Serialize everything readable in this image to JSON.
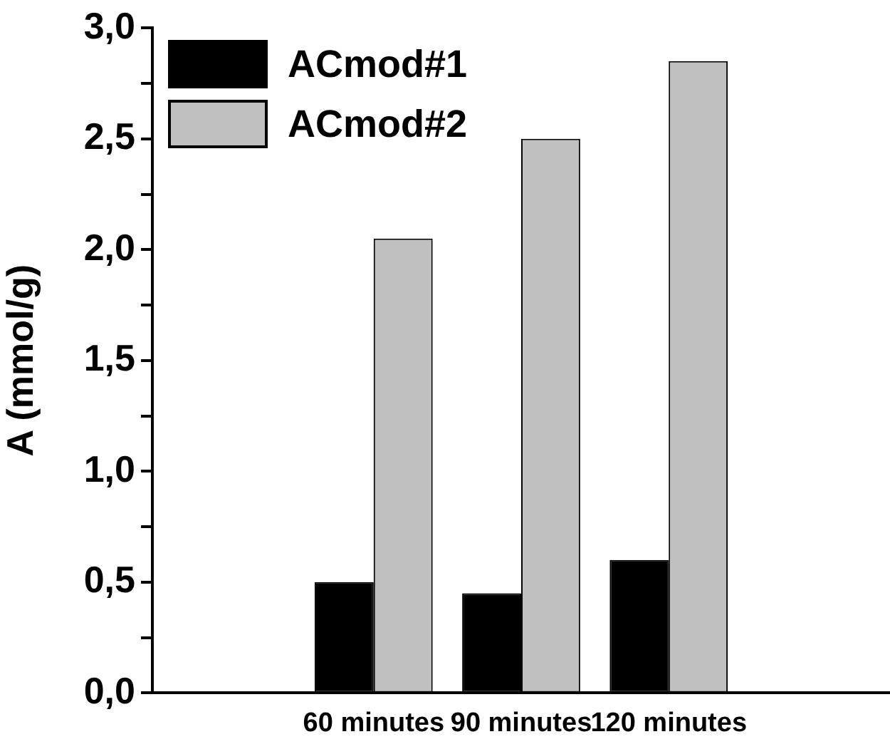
{
  "chart_data": {
    "type": "bar",
    "ylabel": "A (mmol/g)",
    "categories": [
      null,
      "60 minutes",
      "90 minutes",
      "120 minutes",
      null
    ],
    "series": [
      {
        "name": "ACmod#1",
        "color": "#000000",
        "values": [
          null,
          0.5,
          0.45,
          0.6,
          null
        ]
      },
      {
        "name": "ACmod#2",
        "color": "#c0c0c0",
        "values": [
          null,
          2.05,
          2.5,
          2.85,
          null
        ]
      }
    ],
    "ylim": [
      0,
      3
    ],
    "yticks": [
      {
        "value": 0,
        "label": "0,0"
      },
      {
        "value": 0.25,
        "label": null
      },
      {
        "value": 0.5,
        "label": "0,5"
      },
      {
        "value": 0.75,
        "label": null
      },
      {
        "value": 1,
        "label": "1,0"
      },
      {
        "value": 1.25,
        "label": null
      },
      {
        "value": 1.5,
        "label": "1,5"
      },
      {
        "value": 1.75,
        "label": null
      },
      {
        "value": 2,
        "label": "2,0"
      },
      {
        "value": 2.25,
        "label": null
      },
      {
        "value": 2.5,
        "label": "2,5"
      },
      {
        "value": 2.75,
        "label": null
      },
      {
        "value": 3,
        "label": "3,0"
      }
    ],
    "grid": false,
    "legend": "top left"
  }
}
